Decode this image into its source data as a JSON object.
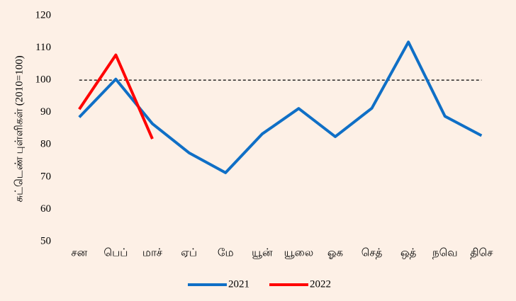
{
  "chart_data": {
    "type": "line",
    "y_label": "சுட்டெண் புள்ளிகள்  (2010=100)",
    "categories": [
      "சன",
      "பெப்",
      "மாச்",
      "ஏப்",
      "மே",
      "யூன்",
      "யூலை",
      "ஓக",
      "செத்",
      "ஒத்",
      "நவெ",
      "திசெ"
    ],
    "series": [
      {
        "name": "2021",
        "color": "#0f6fc6",
        "values": [
          88.5,
          100.3,
          86.5,
          77.5,
          71.3,
          83.3,
          91.2,
          82.5,
          91.3,
          111.8,
          88.8,
          82.8
        ]
      },
      {
        "name": "2022",
        "color": "#ff0000",
        "values": [
          91,
          107.8,
          81.8,
          null,
          null,
          null,
          null,
          null,
          null,
          null,
          null,
          null
        ]
      }
    ],
    "ylim": [
      50,
      120
    ],
    "yticks": [
      50,
      60,
      70,
      80,
      90,
      100,
      110,
      120
    ],
    "reference_line": 100,
    "grid": false,
    "legend": "bottom"
  }
}
